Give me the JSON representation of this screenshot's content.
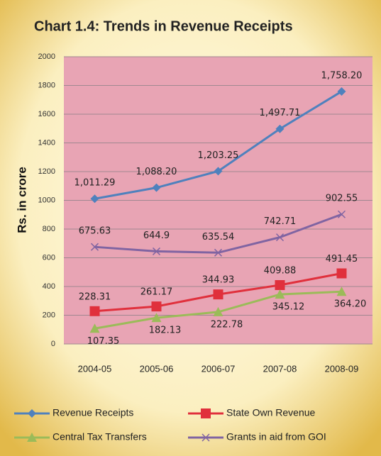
{
  "chart_data": {
    "type": "line",
    "title": "Chart 1.4: Trends in Revenue Receipts",
    "y_label": "Rs. in crore",
    "categories": [
      "2004-05",
      "2005-06",
      "2006-07",
      "2007-08",
      "2008-09"
    ],
    "ylim": [
      0,
      2000
    ],
    "yticks": [
      0,
      200,
      400,
      600,
      800,
      1000,
      1200,
      1400,
      1600,
      1800,
      2000
    ],
    "grid": true,
    "series": [
      {
        "name": "Revenue Receipts",
        "color": "#4f81bd",
        "marker": "diamond",
        "values": [
          1011.29,
          1088.2,
          1203.25,
          1497.71,
          1758.2
        ],
        "value_labels": [
          "1,011.29",
          "1,088.20",
          "1,203.25",
          "1,497.71",
          "1,758.20"
        ]
      },
      {
        "name": "State Own Revenue",
        "color": "#e0303c",
        "marker": "square",
        "values": [
          228.31,
          261.17,
          344.93,
          409.88,
          491.45
        ]
      },
      {
        "name": "Central Tax Transfers",
        "color": "#9bbb59",
        "marker": "triangle",
        "values": [
          107.35,
          182.13,
          222.78,
          345.12,
          364.2
        ],
        "value_labels": [
          "107.35",
          "182.13",
          "222.78",
          "345.12",
          "364.20"
        ]
      },
      {
        "name": "Grants in aid from GOI",
        "color": "#8064a2",
        "marker": "x",
        "values": [
          675.63,
          644.9,
          635.54,
          742.71,
          902.55
        ]
      }
    ]
  }
}
